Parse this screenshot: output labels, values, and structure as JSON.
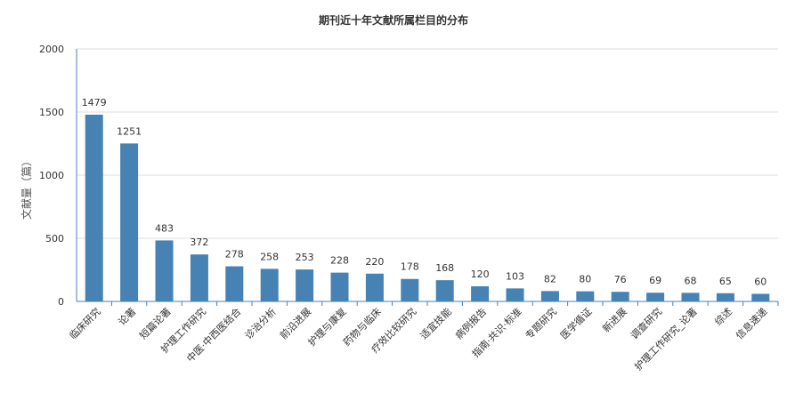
{
  "chart_data": {
    "type": "bar",
    "title": "期刊近十年文献所属栏目的分布",
    "ylabel": "文献量（篇）",
    "xlabel": "",
    "ylim": [
      0,
      2000
    ],
    "yticks": [
      0,
      500,
      1000,
      1500,
      2000
    ],
    "grid": true,
    "legend": "none",
    "categories": [
      "临床研究",
      "论著",
      "短篇论著",
      "护理工作研究",
      "中医·中西医结合",
      "诊治分析",
      "前沿进展",
      "护理与康复",
      "药物与临床",
      "疗效比较研究",
      "适宜技能",
      "病例报告",
      "指南·共识·标准",
      "专题研究",
      "医学循证",
      "新进展",
      "调查研究",
      "护理工作研究_论著",
      "综述",
      "信息速递"
    ],
    "values": [
      1479,
      1251,
      483,
      372,
      278,
      258,
      253,
      228,
      220,
      178,
      168,
      120,
      103,
      82,
      80,
      76,
      69,
      68,
      65,
      60
    ],
    "colors": {
      "bar": "#4682b4",
      "grid": "#dddddd",
      "axis": "#4682b4"
    }
  }
}
